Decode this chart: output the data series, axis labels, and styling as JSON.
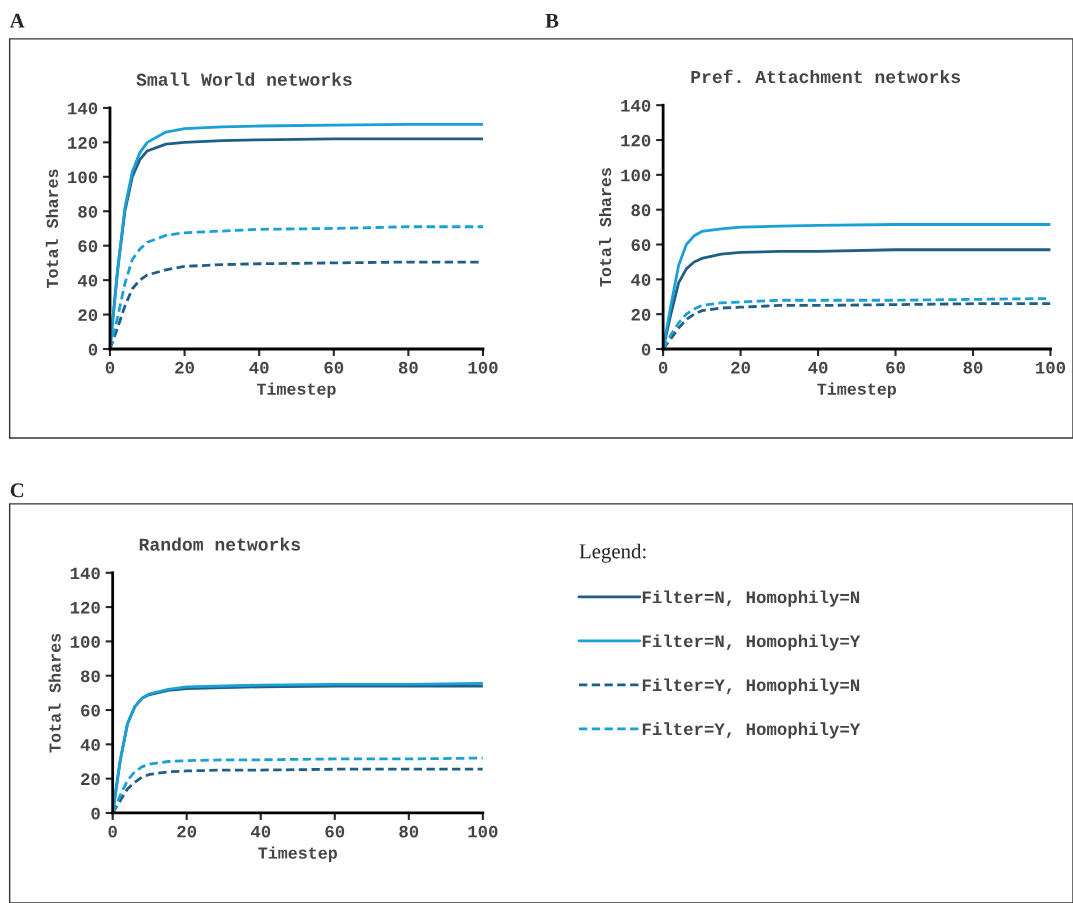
{
  "chart_data": [
    {
      "type": "line",
      "title": "Small World networks",
      "xlabel": "Timestep",
      "ylabel": "Total Shares",
      "annotations": [
        "A"
      ],
      "x": [
        0,
        2,
        4,
        6,
        8,
        10,
        15,
        20,
        30,
        40,
        60,
        80,
        100
      ],
      "xlim": [
        0,
        100
      ],
      "xticks": [
        0,
        20,
        40,
        60,
        80,
        100
      ],
      "ylim": [
        0,
        140
      ],
      "yticks": [
        0,
        20,
        40,
        60,
        80,
        100,
        120,
        140
      ],
      "grid": false,
      "legend": false,
      "marker": "none",
      "series": [
        {
          "color": "#1f5f85",
          "line_style": "solid",
          "values": [
            0,
            45,
            80,
            100,
            110,
            115,
            119,
            120,
            121,
            121.5,
            122,
            122,
            122
          ]
        },
        {
          "color": "#1a9fd6",
          "line_style": "solid",
          "values": [
            0,
            45,
            82,
            103,
            114,
            120,
            126,
            128,
            129,
            129.5,
            130,
            130.5,
            130.5
          ]
        },
        {
          "color": "#1f5f85",
          "line_style": "dashed",
          "values": [
            0,
            12,
            25,
            35,
            40,
            43,
            46,
            48,
            49,
            49.5,
            50,
            50.5,
            50.5
          ]
        },
        {
          "color": "#1a9fd6",
          "line_style": "dashed",
          "values": [
            0,
            18,
            38,
            52,
            58,
            62,
            66,
            67.5,
            68.5,
            69.5,
            70,
            71,
            71
          ]
        }
      ]
    },
    {
      "type": "line",
      "title": "Pref. Attachment networks",
      "xlabel": "Timestep",
      "ylabel": "Total Shares",
      "annotations": [
        "B"
      ],
      "x": [
        0,
        2,
        4,
        6,
        8,
        10,
        15,
        20,
        30,
        40,
        60,
        80,
        100
      ],
      "xlim": [
        0,
        100
      ],
      "xticks": [
        0,
        20,
        40,
        60,
        80,
        100
      ],
      "ylim": [
        0,
        140
      ],
      "yticks": [
        0,
        20,
        40,
        60,
        80,
        100,
        120,
        140
      ],
      "grid": false,
      "legend": false,
      "marker": "none",
      "series": [
        {
          "color": "#1f5f85",
          "line_style": "solid",
          "values": [
            0,
            20,
            38,
            46,
            50,
            52,
            54.5,
            55.5,
            56,
            56,
            57,
            57,
            57
          ]
        },
        {
          "color": "#1a9fd6",
          "line_style": "solid",
          "values": [
            0,
            25,
            48,
            60,
            65,
            67.5,
            69,
            70,
            70.5,
            71,
            71.5,
            71.5,
            71.5
          ]
        },
        {
          "color": "#1f5f85",
          "line_style": "dashed",
          "values": [
            0,
            6,
            12,
            17,
            20,
            22,
            23.5,
            24,
            25,
            25,
            25.5,
            26,
            26
          ]
        },
        {
          "color": "#1a9fd6",
          "line_style": "dashed",
          "values": [
            0,
            8,
            15,
            20,
            23,
            25,
            26.5,
            27,
            28,
            28,
            28,
            28.5,
            29
          ]
        }
      ]
    },
    {
      "type": "line",
      "title": "Random networks",
      "xlabel": "Timestep",
      "ylabel": "Total Shares",
      "legend_title": "Legend:",
      "annotations": [
        "C"
      ],
      "x": [
        0,
        2,
        4,
        6,
        8,
        10,
        15,
        20,
        30,
        40,
        60,
        80,
        100
      ],
      "xlim": [
        0,
        100
      ],
      "xticks": [
        0,
        20,
        40,
        60,
        80,
        100
      ],
      "ylim": [
        0,
        140
      ],
      "yticks": [
        0,
        20,
        40,
        60,
        80,
        100,
        120,
        140
      ],
      "grid": false,
      "legend": "right",
      "marker": "none",
      "series": [
        {
          "name": "Filter=N, Homophily=N",
          "color": "#1f5f85",
          "line_style": "solid",
          "values": [
            0,
            30,
            52,
            62,
            67,
            69,
            71.5,
            72.5,
            73,
            73.5,
            74,
            74,
            74
          ]
        },
        {
          "name": "Filter=N, Homophily=Y",
          "color": "#1a9fd6",
          "line_style": "solid",
          "values": [
            0,
            30,
            52,
            62,
            67,
            69.5,
            72,
            73.5,
            74,
            74.5,
            75,
            75,
            75.5
          ]
        },
        {
          "name": "Filter=Y, Homophily=N",
          "color": "#1f5f85",
          "line_style": "dashed",
          "values": [
            0,
            7,
            14,
            18,
            21,
            22.5,
            24,
            24.5,
            25,
            25,
            25.5,
            25.5,
            25.5
          ]
        },
        {
          "name": "Filter=Y, Homophily=Y",
          "color": "#1a9fd6",
          "line_style": "dashed",
          "values": [
            0,
            10,
            19,
            24,
            27,
            28.5,
            30,
            30.5,
            31,
            31,
            31.5,
            31.5,
            32
          ]
        }
      ]
    }
  ]
}
